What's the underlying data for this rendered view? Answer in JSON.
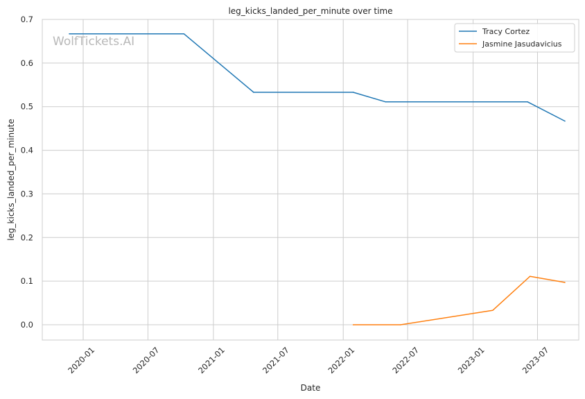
{
  "watermark": "WolfTickets.AI",
  "chart_data": {
    "type": "line",
    "title": "leg_kicks_landed_per_minute over time",
    "xlabel": "Date",
    "ylabel": "leg_kicks_landed_per_minute",
    "x_axis_type": "date",
    "xlim": [
      "2019-09-08",
      "2023-10-25"
    ],
    "ylim": [
      -0.035,
      0.7
    ],
    "x_ticks": [
      "2020-01",
      "2020-07",
      "2021-01",
      "2021-07",
      "2022-01",
      "2022-07",
      "2023-01",
      "2023-07"
    ],
    "y_ticks": [
      "0.0",
      "0.1",
      "0.2",
      "0.3",
      "0.4",
      "0.5",
      "0.6",
      "0.7"
    ],
    "grid": true,
    "legend_position": "top-right",
    "series": [
      {
        "name": "Tracy Cortez",
        "color": "#1f77b4",
        "points": [
          {
            "x": "2019-11-23",
            "y": 0.667
          },
          {
            "x": "2020-10-10",
            "y": 0.667
          },
          {
            "x": "2021-04-24",
            "y": 0.533
          },
          {
            "x": "2022-01-29",
            "y": 0.533
          },
          {
            "x": "2022-04-30",
            "y": 0.511
          },
          {
            "x": "2023-06-03",
            "y": 0.511
          },
          {
            "x": "2023-09-16",
            "y": 0.467
          }
        ]
      },
      {
        "name": "Jasmine Jasudavicius",
        "color": "#ff7f0e",
        "points": [
          {
            "x": "2022-01-29",
            "y": 0.0
          },
          {
            "x": "2022-06-11",
            "y": 0.0
          },
          {
            "x": "2023-02-25",
            "y": 0.033
          },
          {
            "x": "2023-06-10",
            "y": 0.111
          },
          {
            "x": "2023-09-16",
            "y": 0.097
          }
        ]
      }
    ]
  }
}
